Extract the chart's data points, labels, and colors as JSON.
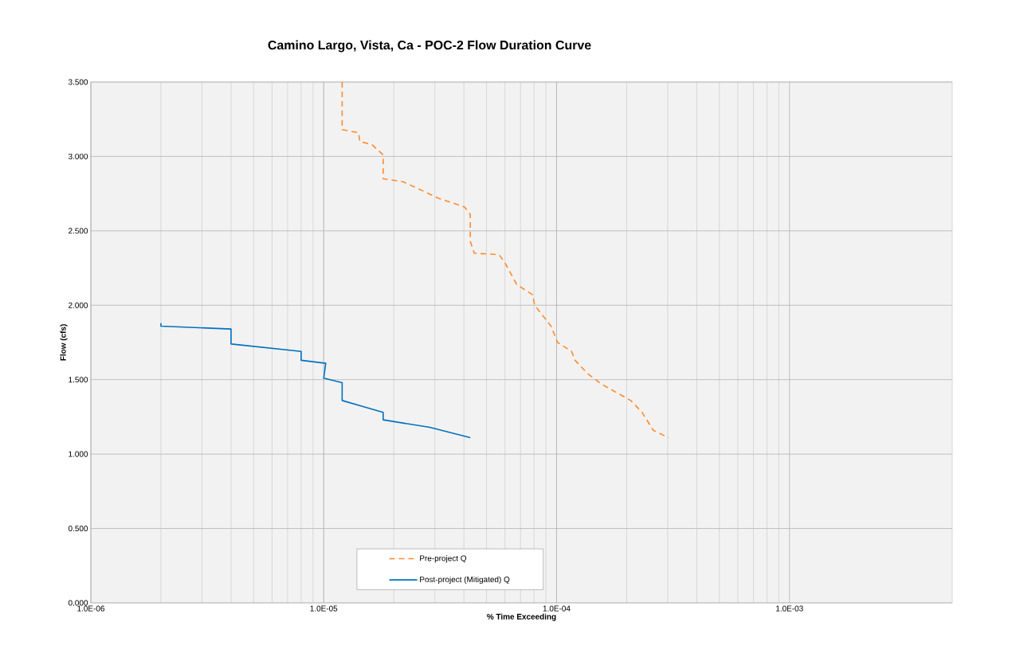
{
  "chart_data": {
    "type": "line",
    "title": "Camino Largo, Vista, Ca - POC-2 Flow Duration Curve",
    "xlabel": "% Time Exceeding",
    "ylabel": "Flow (cfs)",
    "log": "x",
    "grid": true,
    "legend": "bottom",
    "xlim": [
      1e-06,
      0.005
    ],
    "xticks": [
      {
        "value": 1e-06,
        "label": "1.0E-06"
      },
      {
        "value": 1e-05,
        "label": "1.0E-05"
      },
      {
        "value": 0.0001,
        "label": "1.0E-04"
      },
      {
        "value": 0.001,
        "label": "1.0E-03"
      }
    ],
    "ylim": [
      0,
      3.5
    ],
    "yticks": [
      {
        "value": 0,
        "label": "0.000"
      },
      {
        "value": 0.5,
        "label": "0.500"
      },
      {
        "value": 1,
        "label": "1.000"
      },
      {
        "value": 1.5,
        "label": "1.500"
      },
      {
        "value": 2,
        "label": "2.000"
      },
      {
        "value": 2.5,
        "label": "2.500"
      },
      {
        "value": 3,
        "label": "3.000"
      },
      {
        "value": 3.5,
        "label": "3.500"
      }
    ],
    "series": [
      {
        "name": "Pre-project Q",
        "color": "#ff8a2b",
        "line_style": "dashed",
        "x": [
          1.2e-05,
          1.2e-05,
          1.41e-05,
          1.43e-05,
          1.61e-05,
          1.8e-05,
          1.8e-05,
          2.19e-05,
          2.57e-05,
          3.1e-05,
          4.03e-05,
          4.26e-05,
          4.26e-05,
          4.43e-05,
          5.66e-05,
          5.98e-05,
          6.74e-05,
          7.89e-05,
          8.05e-05,
          9.46e-05,
          0.000101,
          0.000116,
          0.00012,
          0.000136,
          0.000156,
          0.000208,
          0.000233,
          0.00026,
          0.000302
        ],
        "values": [
          3.5,
          3.18,
          3.16,
          3.1,
          3.08,
          3.01,
          2.85,
          2.83,
          2.78,
          2.72,
          2.66,
          2.61,
          2.43,
          2.35,
          2.34,
          2.29,
          2.14,
          2.07,
          2.0,
          1.86,
          1.75,
          1.69,
          1.63,
          1.54,
          1.47,
          1.36,
          1.28,
          1.16,
          1.11
        ]
      },
      {
        "name": "Post-project (Mitigated) Q",
        "color": "#0070c0",
        "line_style": "solid",
        "x": [
          2e-06,
          2e-06,
          4e-06,
          4e-06,
          8e-06,
          8e-06,
          1.02e-05,
          1e-05,
          1.2e-05,
          1.2e-05,
          1.8e-05,
          1.8e-05,
          2.85e-05,
          4.26e-05
        ],
        "values": [
          1.88,
          1.86,
          1.84,
          1.74,
          1.69,
          1.63,
          1.61,
          1.51,
          1.48,
          1.36,
          1.28,
          1.23,
          1.18,
          1.11
        ]
      }
    ]
  }
}
